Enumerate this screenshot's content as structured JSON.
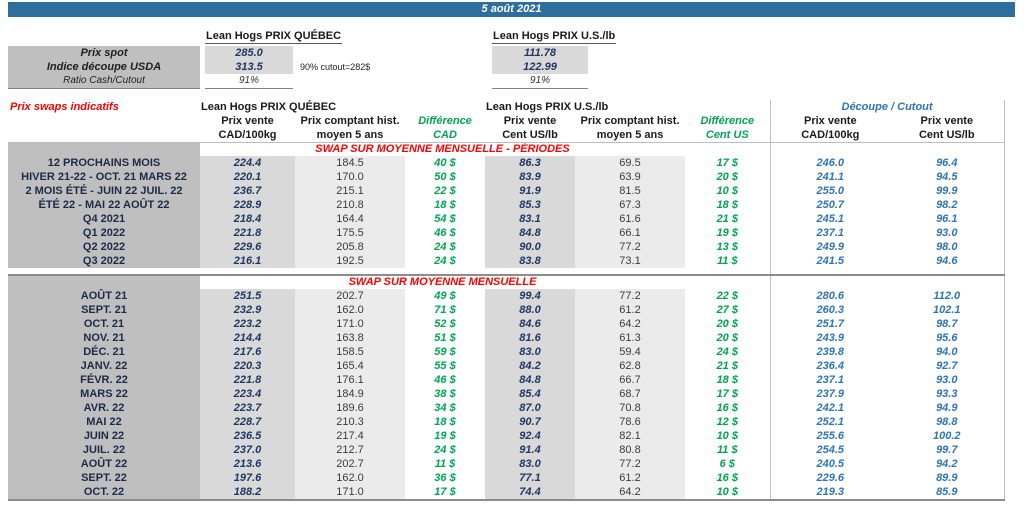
{
  "date_bar": {
    "text": "5 août 2021"
  },
  "top_section": {
    "qc_group": "Lean Hogs PRIX QUÉBEC",
    "us_group": "Lean Hogs PRIX U.S./lb",
    "note": "90% cutout=282$",
    "rows": [
      {
        "label": "Prix spot",
        "qc": "285.0",
        "us": "111.78"
      },
      {
        "label": "Indice découpe USDA",
        "qc": "313.5",
        "us": "122.99"
      },
      {
        "label": "Ratio Cash/Cutout",
        "qc": "91%",
        "us": "91%"
      }
    ]
  },
  "swaps": {
    "section_title": "Prix swaps indicatifs",
    "qc_group": "Lean Hogs PRIX QUÉBEC",
    "us_group": "Lean Hogs PRIX U.S./lb",
    "cutout_group": "Découpe / Cutout",
    "columns": [
      {
        "line1": "Prix vente",
        "line2": "CAD/100kg"
      },
      {
        "line1": "Prix comptant hist.",
        "line2": "moyen 5 ans"
      },
      {
        "line1": "Différence",
        "line2": "CAD"
      },
      {
        "line1": "Prix vente",
        "line2": "Cent US/lb"
      },
      {
        "line1": "Prix comptant hist.",
        "line2": "moyen 5 ans"
      },
      {
        "line1": "Différence",
        "line2": "Cent US"
      },
      {
        "line1": "Prix vente",
        "line2": "CAD/100kg"
      },
      {
        "line1": "Prix vente",
        "line2": "Cent US/lb"
      }
    ],
    "sections": [
      {
        "heading": "SWAP SUR MOYENNE MENSUELLE - PÉRIODES",
        "rows": [
          {
            "label": "12 PROCHAINS MOIS",
            "values": [
              "224.4",
              "184.5",
              "40 $",
              "86.3",
              "69.5",
              "17 $",
              "246.0",
              "96.4"
            ]
          },
          {
            "label": "HIVER 21-22 - OCT. 21 MARS 22",
            "values": [
              "220.1",
              "170.0",
              "50 $",
              "83.9",
              "63.9",
              "20 $",
              "241.1",
              "94.5"
            ]
          },
          {
            "label": "2 MOIS ÉTÉ - JUIN 22 JUIL. 22",
            "values": [
              "236.7",
              "215.1",
              "22 $",
              "91.9",
              "81.5",
              "10 $",
              "255.0",
              "99.9"
            ]
          },
          {
            "label": "ÉTÉ 22 - MAI 22 AOÛT 22",
            "values": [
              "228.9",
              "210.8",
              "18 $",
              "85.3",
              "67.3",
              "18 $",
              "250.7",
              "98.2"
            ]
          },
          {
            "label": "Q4 2021",
            "values": [
              "218.4",
              "164.4",
              "54 $",
              "83.1",
              "61.6",
              "21 $",
              "245.1",
              "96.1"
            ]
          },
          {
            "label": "Q1 2022",
            "values": [
              "221.8",
              "175.5",
              "46 $",
              "84.8",
              "66.1",
              "19 $",
              "237.1",
              "93.0"
            ]
          },
          {
            "label": "Q2 2022",
            "values": [
              "229.6",
              "205.8",
              "24 $",
              "90.0",
              "77.2",
              "13 $",
              "249.9",
              "98.0"
            ]
          },
          {
            "label": "Q3 2022",
            "values": [
              "216.1",
              "192.5",
              "24 $",
              "83.8",
              "73.1",
              "11 $",
              "241.5",
              "94.6"
            ]
          }
        ]
      },
      {
        "heading": "SWAP SUR MOYENNE MENSUELLE",
        "rows": [
          {
            "label": "AOÛT 21",
            "values": [
              "251.5",
              "202.7",
              "49 $",
              "99.4",
              "77.2",
              "22 $",
              "280.6",
              "112.0"
            ]
          },
          {
            "label": "SEPT. 21",
            "values": [
              "232.9",
              "162.0",
              "71 $",
              "88.0",
              "61.2",
              "27 $",
              "260.3",
              "102.1"
            ]
          },
          {
            "label": "OCT. 21",
            "values": [
              "223.2",
              "171.0",
              "52 $",
              "84.6",
              "64.2",
              "20 $",
              "251.7",
              "98.7"
            ]
          },
          {
            "label": "NOV. 21",
            "values": [
              "214.4",
              "163.8",
              "51 $",
              "81.6",
              "61.3",
              "20 $",
              "243.9",
              "95.6"
            ]
          },
          {
            "label": "DÉC. 21",
            "values": [
              "217.6",
              "158.5",
              "59 $",
              "83.0",
              "59.4",
              "24 $",
              "239.8",
              "94.0"
            ]
          },
          {
            "label": "JANV. 22",
            "values": [
              "220.3",
              "165.4",
              "55 $",
              "84.2",
              "62.8",
              "21 $",
              "236.4",
              "92.7"
            ]
          },
          {
            "label": "FÉVR. 22",
            "values": [
              "221.8",
              "176.1",
              "46 $",
              "84.8",
              "66.7",
              "18 $",
              "237.1",
              "93.0"
            ]
          },
          {
            "label": "MARS 22",
            "values": [
              "223.4",
              "184.9",
              "38 $",
              "85.4",
              "68.7",
              "17 $",
              "237.9",
              "93.3"
            ]
          },
          {
            "label": "AVR. 22",
            "values": [
              "223.7",
              "189.6",
              "34 $",
              "87.0",
              "70.8",
              "16 $",
              "242.1",
              "94.9"
            ]
          },
          {
            "label": "MAI 22",
            "values": [
              "228.7",
              "210.3",
              "18 $",
              "90.7",
              "78.6",
              "12 $",
              "252.1",
              "98.8"
            ]
          },
          {
            "label": "JUIN 22",
            "values": [
              "236.5",
              "217.4",
              "19 $",
              "92.4",
              "82.1",
              "10 $",
              "255.6",
              "100.2"
            ]
          },
          {
            "label": "JUIL. 22",
            "values": [
              "237.0",
              "212.7",
              "24 $",
              "91.4",
              "80.8",
              "11 $",
              "254.5",
              "99.7"
            ]
          },
          {
            "label": "AOÛT 22",
            "values": [
              "213.6",
              "202.7",
              "11 $",
              "83.0",
              "77.2",
              "6 $",
              "240.5",
              "94.2"
            ]
          },
          {
            "label": "SEPT. 22",
            "values": [
              "197.6",
              "162.0",
              "36 $",
              "77.1",
              "61.2",
              "16 $",
              "229.6",
              "89.9"
            ]
          },
          {
            "label": "OCT. 22",
            "values": [
              "188.2",
              "171.0",
              "17 $",
              "74.4",
              "64.2",
              "10 $",
              "219.3",
              "85.9"
            ]
          }
        ]
      }
    ]
  },
  "colors": {
    "header_bar": "#2D6E9E",
    "accent_red": "#FF0000",
    "accent_green": "#00A550",
    "accent_blue": "#2E75B6",
    "navy": "#1F3864",
    "label_bg": "#BFBFBF",
    "value_bg": "#D9D9D9",
    "hist_bg": "#EBEBEB"
  }
}
